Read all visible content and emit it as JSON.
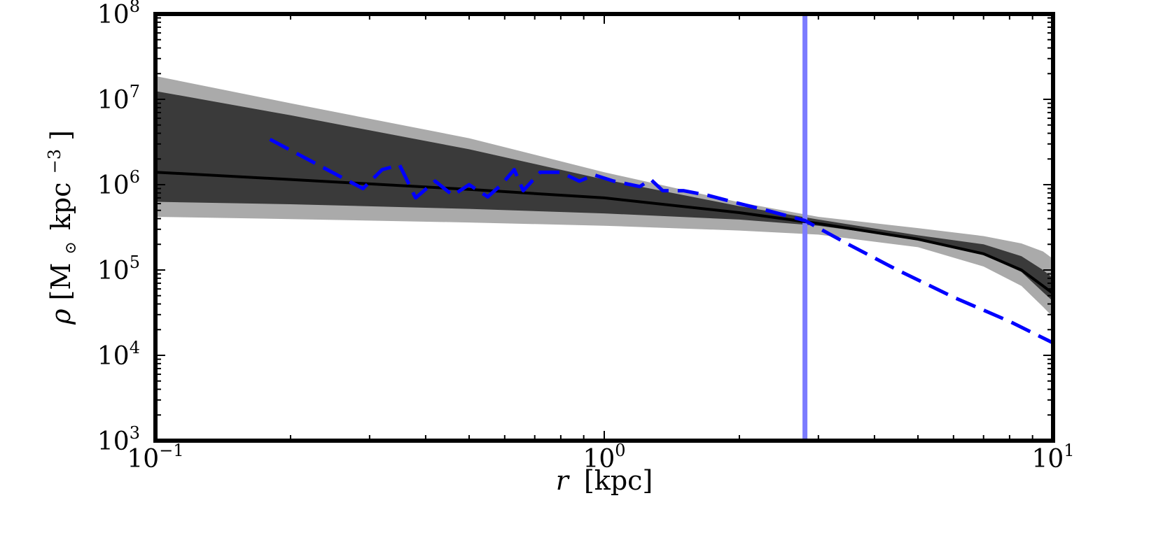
{
  "chart_data": {
    "type": "line",
    "xlabel_var": "r",
    "xlabel_unit": "[kpc]",
    "ylabel_var": "ρ",
    "ylabel_unit_pre": "[M",
    "ylabel_unit_sub": "⊙",
    "ylabel_unit_mid": "kpc",
    "ylabel_unit_sup": "−3",
    "ylabel_unit_post": "]",
    "x_scale": "log",
    "y_scale": "log",
    "xlim": [
      0.1,
      10
    ],
    "ylim": [
      1000,
      100000000
    ],
    "x_ticks": [
      {
        "value": 0.1,
        "base": "10",
        "exp": "−1"
      },
      {
        "value": 1,
        "base": "10",
        "exp": "0"
      },
      {
        "value": 10,
        "base": "10",
        "exp": "1"
      }
    ],
    "y_ticks": [
      {
        "value": 1000,
        "base": "10",
        "exp": "3"
      },
      {
        "value": 10000,
        "base": "10",
        "exp": "4"
      },
      {
        "value": 100000,
        "base": "10",
        "exp": "5"
      },
      {
        "value": 1000000,
        "base": "10",
        "exp": "6"
      },
      {
        "value": 10000000,
        "base": "10",
        "exp": "7"
      },
      {
        "value": 100000000,
        "base": "10",
        "exp": "8"
      }
    ],
    "bands": [
      {
        "role": "outer",
        "color": "#aaaaaa",
        "x": [
          0.1,
          0.2,
          0.5,
          1.0,
          2.0,
          3.0,
          5.0,
          7.0,
          8.5,
          9.5,
          10
        ],
        "upper": [
          18700000,
          9000000,
          3500000,
          1400000,
          620000,
          420000,
          310000,
          250000,
          205000,
          165000,
          135000
        ],
        "lower": [
          420000,
          395000,
          360000,
          330000,
          290000,
          260000,
          185000,
          110000,
          65000,
          37000,
          28000
        ]
      },
      {
        "role": "inner",
        "color": "#3a3a3a",
        "x": [
          0.1,
          0.2,
          0.5,
          1.0,
          2.0,
          3.0,
          5.0,
          7.0,
          8.5,
          9.5,
          10
        ],
        "upper": [
          12500000,
          6500000,
          2600000,
          1150000,
          560000,
          390000,
          255000,
          200000,
          145000,
          100000,
          80000
        ],
        "lower": [
          630000,
          590000,
          520000,
          460000,
          390000,
          330000,
          230000,
          150000,
          95000,
          55000,
          43000
        ]
      }
    ],
    "series": [
      {
        "color": "#000000",
        "style": "solid",
        "x": [
          0.1,
          0.2,
          0.5,
          1.0,
          2.0,
          3.0,
          5.0,
          7.0,
          8.5,
          9.5,
          10
        ],
        "y": [
          1400000,
          1150000,
          880000,
          700000,
          470000,
          350000,
          230000,
          155000,
          100000,
          65000,
          53000
        ]
      },
      {
        "color": "#0000ff",
        "style": "dashed",
        "x": [
          0.18,
          0.29,
          0.32,
          0.35,
          0.38,
          0.42,
          0.46,
          0.5,
          0.55,
          0.59,
          0.63,
          0.66,
          0.72,
          0.8,
          0.88,
          0.95,
          1.05,
          1.2,
          1.27,
          1.35,
          1.5,
          1.7,
          2.0,
          2.3,
          2.8,
          3.5,
          4.5,
          6.0,
          8.0,
          10
        ],
        "y": [
          3400000,
          900000,
          1500000,
          1700000,
          700000,
          1100000,
          750000,
          1000000,
          720000,
          1000000,
          1500000,
          850000,
          1400000,
          1400000,
          1100000,
          1300000,
          1100000,
          950000,
          1150000,
          850000,
          850000,
          750000,
          600000,
          500000,
          380000,
          200000,
          100000,
          48000,
          25000,
          14000
        ]
      }
    ],
    "vline": {
      "x": 2.8,
      "color": "#7b7bff"
    },
    "grid": false,
    "legend": "none"
  }
}
